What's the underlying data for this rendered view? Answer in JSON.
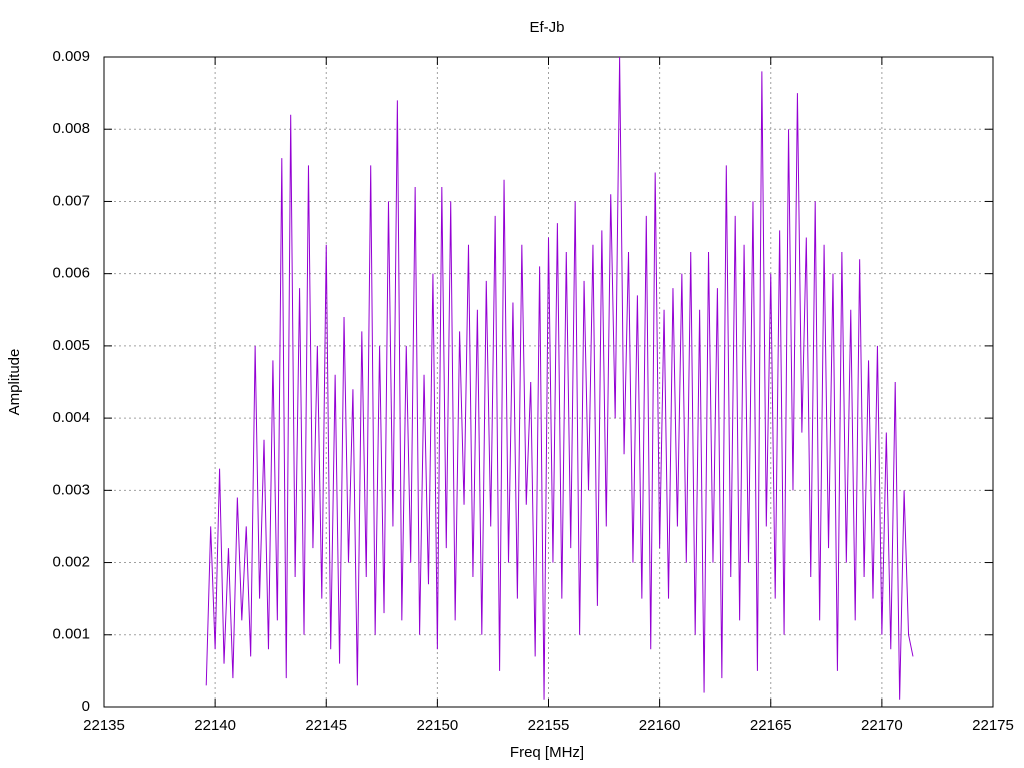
{
  "chart_data": {
    "type": "line",
    "title": "Ef-Jb",
    "x_label": "Freq [MHz]",
    "y_label": "Amplitude",
    "x": [
      22139.6,
      22139.8,
      22140.0,
      22140.2,
      22140.4,
      22140.6,
      22140.8,
      22141.0,
      22141.2,
      22141.4,
      22141.6,
      22141.8,
      22142.0,
      22142.2,
      22142.4,
      22142.6,
      22142.8,
      22143.0,
      22143.2,
      22143.4,
      22143.6,
      22143.8,
      22144.0,
      22144.2,
      22144.4,
      22144.6,
      22144.8,
      22145.0,
      22145.2,
      22145.4,
      22145.6,
      22145.8,
      22146.0,
      22146.2,
      22146.4,
      22146.6,
      22146.8,
      22147.0,
      22147.2,
      22147.4,
      22147.6,
      22147.8,
      22148.0,
      22148.2,
      22148.4,
      22148.6,
      22148.8,
      22149.0,
      22149.2,
      22149.4,
      22149.6,
      22149.8,
      22150.0,
      22150.2,
      22150.4,
      22150.6,
      22150.8,
      22151.0,
      22151.2,
      22151.4,
      22151.6,
      22151.8,
      22152.0,
      22152.2,
      22152.4,
      22152.6,
      22152.8,
      22153.0,
      22153.2,
      22153.4,
      22153.6,
      22153.8,
      22154.0,
      22154.2,
      22154.4,
      22154.6,
      22154.8,
      22155.0,
      22155.2,
      22155.4,
      22155.6,
      22155.8,
      22156.0,
      22156.2,
      22156.4,
      22156.6,
      22156.8,
      22157.0,
      22157.2,
      22157.4,
      22157.6,
      22157.8,
      22158.0,
      22158.2,
      22158.4,
      22158.6,
      22158.8,
      22159.0,
      22159.2,
      22159.4,
      22159.6,
      22159.8,
      22160.0,
      22160.2,
      22160.4,
      22160.6,
      22160.8,
      22161.0,
      22161.2,
      22161.4,
      22161.6,
      22161.8,
      22162.0,
      22162.2,
      22162.4,
      22162.6,
      22162.8,
      22163.0,
      22163.2,
      22163.4,
      22163.6,
      22163.8,
      22164.0,
      22164.2,
      22164.4,
      22164.6,
      22164.8,
      22165.0,
      22165.2,
      22165.4,
      22165.6,
      22165.8,
      22166.0,
      22166.2,
      22166.4,
      22166.6,
      22166.8,
      22167.0,
      22167.2,
      22167.4,
      22167.6,
      22167.8,
      22168.0,
      22168.2,
      22168.4,
      22168.6,
      22168.8,
      22169.0,
      22169.2,
      22169.4,
      22169.6,
      22169.8,
      22170.0,
      22170.2,
      22170.4,
      22170.6,
      22170.8,
      22171.0,
      22171.2,
      22171.4
    ],
    "series": [
      {
        "color": "#9400d3",
        "values": [
          0.0003,
          0.0025,
          0.0008,
          0.0033,
          0.0006,
          0.0022,
          0.0004,
          0.0029,
          0.0012,
          0.0025,
          0.0007,
          0.005,
          0.0015,
          0.0037,
          0.0008,
          0.0048,
          0.0012,
          0.0076,
          0.0004,
          0.0082,
          0.0018,
          0.0058,
          0.001,
          0.0075,
          0.0022,
          0.005,
          0.0015,
          0.0064,
          0.0008,
          0.0046,
          0.0006,
          0.0054,
          0.002,
          0.0044,
          0.0003,
          0.0052,
          0.0018,
          0.0075,
          0.001,
          0.005,
          0.0013,
          0.007,
          0.0025,
          0.0084,
          0.0012,
          0.005,
          0.002,
          0.0072,
          0.001,
          0.0046,
          0.0017,
          0.006,
          0.0008,
          0.0072,
          0.0022,
          0.007,
          0.0012,
          0.0052,
          0.0028,
          0.0064,
          0.0018,
          0.0055,
          0.001,
          0.0059,
          0.0025,
          0.0068,
          0.0005,
          0.0073,
          0.002,
          0.0056,
          0.0015,
          0.0064,
          0.0028,
          0.0045,
          0.0007,
          0.0061,
          0.0001,
          0.0065,
          0.002,
          0.0067,
          0.0015,
          0.0063,
          0.0022,
          0.007,
          0.001,
          0.0059,
          0.003,
          0.0064,
          0.0014,
          0.0066,
          0.0025,
          0.0071,
          0.004,
          0.009,
          0.0035,
          0.0063,
          0.002,
          0.0057,
          0.0015,
          0.0068,
          0.0008,
          0.0074,
          0.0022,
          0.0055,
          0.0015,
          0.0058,
          0.0025,
          0.006,
          0.002,
          0.0063,
          0.001,
          0.0055,
          0.0002,
          0.0063,
          0.002,
          0.0058,
          0.0004,
          0.0075,
          0.0018,
          0.0068,
          0.0012,
          0.0064,
          0.002,
          0.007,
          0.0005,
          0.0088,
          0.0025,
          0.006,
          0.0015,
          0.0066,
          0.001,
          0.008,
          0.003,
          0.0085,
          0.0038,
          0.0065,
          0.0018,
          0.007,
          0.0012,
          0.0064,
          0.0022,
          0.006,
          0.0005,
          0.0063,
          0.002,
          0.0055,
          0.0012,
          0.0062,
          0.0018,
          0.0048,
          0.0015,
          0.005,
          0.001,
          0.0038,
          0.0008,
          0.0045,
          0.0001,
          0.003,
          0.001,
          0.0007
        ]
      }
    ],
    "xlim": [
      22135,
      22175
    ],
    "xticks": [
      22135,
      22140,
      22145,
      22150,
      22155,
      22160,
      22165,
      22170,
      22175
    ],
    "ylim": [
      0,
      0.009
    ],
    "yticks": [
      0,
      0.001,
      0.002,
      0.003,
      0.004,
      0.005,
      0.006,
      0.007,
      0.008,
      0.009
    ],
    "grid": true
  }
}
